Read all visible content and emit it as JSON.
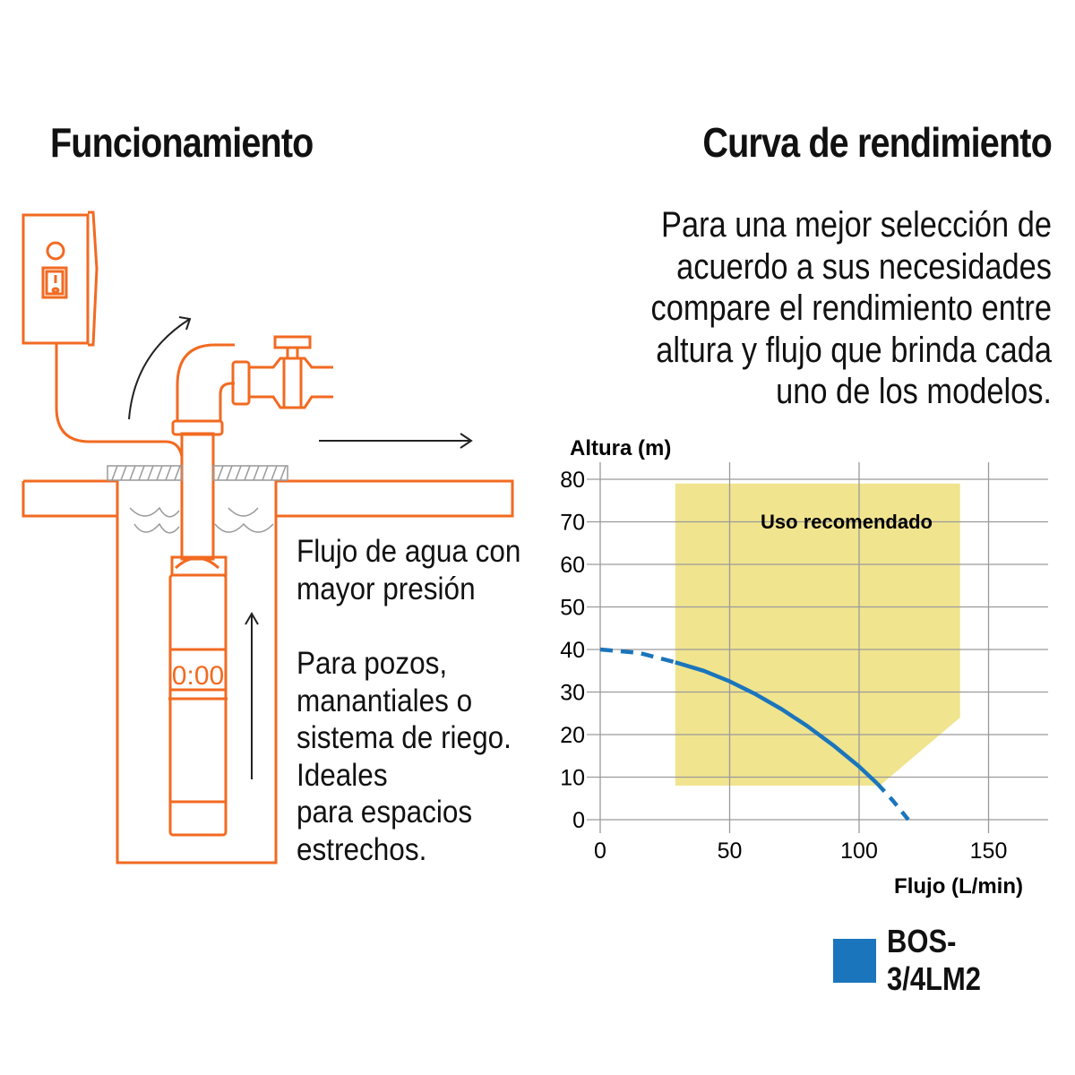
{
  "left": {
    "title": "Funcionamiento",
    "flow_text": [
      "Flujo de agua con",
      "mayor presión"
    ],
    "use_text": [
      "Para pozos,",
      "manantiales o",
      "sistema de riego.",
      "Ideales",
      "para espacios",
      "estrechos."
    ],
    "pump_display": "0:00",
    "accent_color": "#f26a21"
  },
  "right": {
    "title": "Curva de rendimiento",
    "intro": [
      "Para una mejor selección de",
      "acuerdo a sus necesidades",
      "compare el rendimiento entre",
      "altura y flujo que brinda cada",
      "uno de los modelos."
    ]
  },
  "chart_data": {
    "type": "line",
    "xlabel": "Flujo (L/min)",
    "ylabel": "Altura (m)",
    "xlim": [
      0,
      175
    ],
    "ylim": [
      0,
      80
    ],
    "xticks": [
      0,
      50,
      100,
      150
    ],
    "yticks": [
      0,
      10,
      20,
      30,
      40,
      50,
      60,
      70,
      80
    ],
    "grid": true,
    "region": {
      "label": "Uso recomendado",
      "color": "#f1e48e",
      "polygon": [
        [
          29,
          79
        ],
        [
          139,
          79
        ],
        [
          139,
          24
        ],
        [
          108,
          8
        ],
        [
          29,
          8
        ]
      ]
    },
    "series": [
      {
        "name": "BOS-3/4LM2",
        "color": "#1b75bc",
        "dashed_start": [
          [
            0,
            40
          ],
          [
            15,
            39.2
          ],
          [
            29,
            37
          ]
        ],
        "solid": [
          [
            29,
            37
          ],
          [
            40,
            35
          ],
          [
            50,
            32.5
          ],
          [
            60,
            29.5
          ],
          [
            70,
            26
          ],
          [
            80,
            22
          ],
          [
            90,
            17.5
          ],
          [
            100,
            12.5
          ],
          [
            107,
            8.5
          ]
        ],
        "dashed_end": [
          [
            107,
            8.5
          ],
          [
            113,
            4.5
          ],
          [
            119,
            0
          ]
        ]
      }
    ],
    "legend": "bottom-right"
  }
}
